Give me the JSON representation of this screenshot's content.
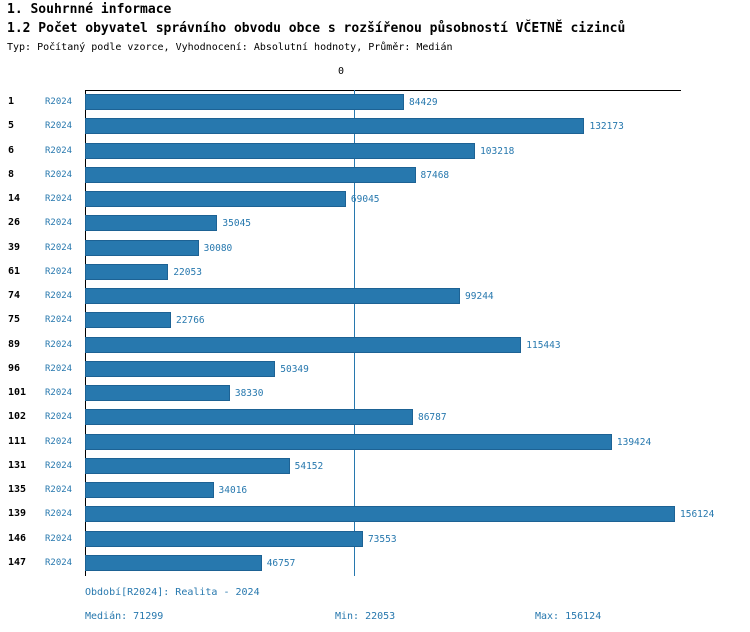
{
  "header": {
    "title1": "1. Souhrnné informace",
    "title2": "1.2 Počet obyvatel správního obvodu obce s rozšířenou působností VČETNĚ cizinců",
    "subtitle": "Typ: Počítaný podle vzorce, Vyhodnocení: Absolutní hodnoty, Průměr: Medián"
  },
  "axis": {
    "zero_label": "0"
  },
  "chart_data": {
    "type": "bar",
    "orientation": "horizontal",
    "title": "1.2 Počet obyvatel správního obvodu obce s rozšířenou působností VČETNĚ cizinců",
    "series_label": "R2024",
    "categories": [
      "1",
      "5",
      "6",
      "8",
      "14",
      "26",
      "39",
      "61",
      "74",
      "75",
      "89",
      "96",
      "101",
      "102",
      "111",
      "131",
      "135",
      "139",
      "146",
      "147"
    ],
    "values": [
      84429,
      132173,
      103218,
      87468,
      69045,
      35045,
      30080,
      22053,
      99244,
      22766,
      115443,
      50349,
      38330,
      86787,
      139424,
      54152,
      34016,
      156124,
      73553,
      46757
    ],
    "xlim": [
      0,
      156124
    ],
    "median_line_value": 71299,
    "bar_color": "#2778ae",
    "grid": false,
    "legend_position": "none"
  },
  "footer": {
    "period": "Období[R2024]: Realita - 2024",
    "median": "Medián: 71299",
    "min": "Min: 22053",
    "max": "Max: 156124"
  }
}
